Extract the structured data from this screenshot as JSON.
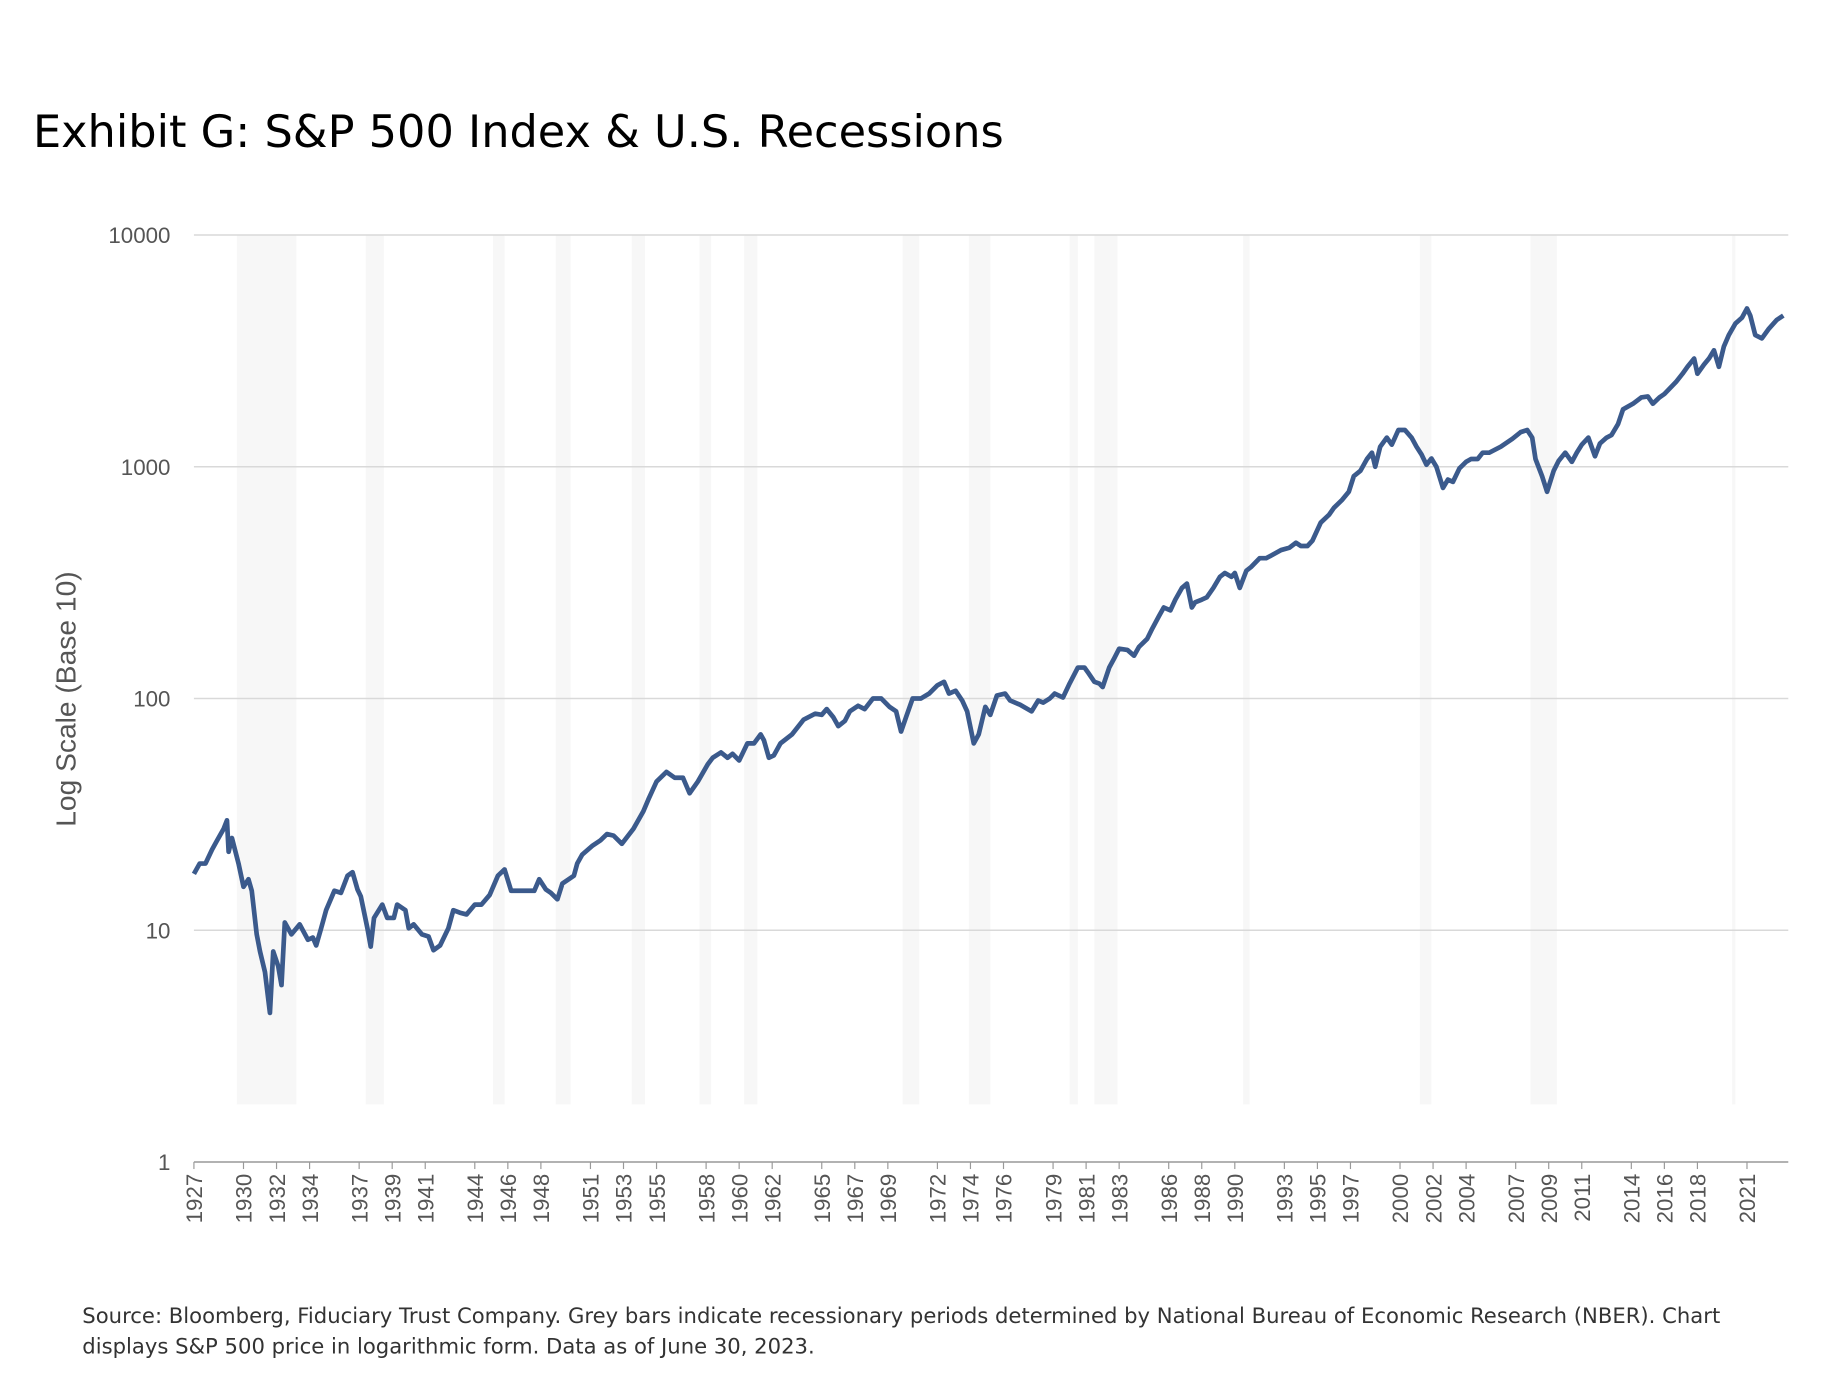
{
  "chart_data": {
    "type": "line",
    "title": "Exhibit G: S&P 500 Index & U.S. Recessions",
    "ylabel": "Log Scale (Base 10)",
    "source": "Source: Bloomberg, Fiduciary Trust Company. Grey bars indicate recessionary periods determined by National Bureau of Economic Research (NBER). Chart displays S&P 500 price in logarithmic form. Data as of June 30, 2023.",
    "log_y": true,
    "grid": true,
    "ylim": [
      1,
      10000
    ],
    "yticks": [
      1,
      10,
      100,
      1000,
      10000
    ],
    "xlim": [
      1927,
      2023.5
    ],
    "xticks": [
      1927,
      1930,
      1932,
      1934,
      1937,
      1939,
      1941,
      1944,
      1946,
      1948,
      1951,
      1953,
      1955,
      1958,
      1960,
      1962,
      1965,
      1967,
      1969,
      1972,
      1974,
      1976,
      1979,
      1981,
      1983,
      1986,
      1988,
      1990,
      1993,
      1995,
      1997,
      2000,
      2002,
      2004,
      2007,
      2009,
      2011,
      2014,
      2016,
      2018,
      2021
    ],
    "recession_periods": [
      [
        1929.6,
        1933.2
      ],
      [
        1937.4,
        1938.5
      ],
      [
        1945.1,
        1945.8
      ],
      [
        1948.9,
        1949.8
      ],
      [
        1953.5,
        1954.3
      ],
      [
        1957.6,
        1958.3
      ],
      [
        1960.3,
        1961.1
      ],
      [
        1969.9,
        1970.9
      ],
      [
        1973.9,
        1975.2
      ],
      [
        1980.0,
        1980.5
      ],
      [
        1981.5,
        1982.9
      ],
      [
        1990.5,
        1990.9
      ],
      [
        2001.2,
        2001.9
      ],
      [
        2007.9,
        2009.5
      ],
      [
        2020.1,
        2020.3
      ]
    ],
    "series": [
      {
        "name": "S&P 500",
        "color": "#3b5a8c",
        "x": [
          1927,
          1927.35,
          1927.7,
          1928.1,
          1928.4,
          1928.8,
          1929.0,
          1929.1,
          1929.3,
          1929.7,
          1930.0,
          1930.3,
          1930.5,
          1930.8,
          1931.0,
          1931.3,
          1931.6,
          1931.8,
          1932.1,
          1932.3,
          1932.5,
          1932.9,
          1933.4,
          1933.9,
          1934.2,
          1934.4,
          1934.7,
          1935.0,
          1935.5,
          1935.9,
          1936.3,
          1936.6,
          1936.9,
          1937.1,
          1937.5,
          1937.7,
          1937.9,
          1938.4,
          1938.7,
          1939.1,
          1939.3,
          1939.8,
          1940.0,
          1940.3,
          1940.8,
          1941.2,
          1941.5,
          1941.9,
          1942.4,
          1942.7,
          1943.1,
          1943.5,
          1944.0,
          1944.4,
          1944.9,
          1945.4,
          1945.8,
          1946.2,
          1947.1,
          1947.6,
          1947.9,
          1948.3,
          1948.6,
          1949.0,
          1949.3,
          1950.0,
          1950.2,
          1950.5,
          1951.1,
          1951.6,
          1952.0,
          1952.4,
          1952.9,
          1953.6,
          1954.2,
          1954.5,
          1955.0,
          1955.6,
          1956.1,
          1956.6,
          1957.0,
          1957.5,
          1958.1,
          1958.4,
          1958.9,
          1959.3,
          1959.6,
          1960.0,
          1960.5,
          1960.9,
          1961.3,
          1961.5,
          1961.8,
          1962.1,
          1962.5,
          1963.2,
          1963.9,
          1964.6,
          1965.0,
          1965.3,
          1965.7,
          1966.0,
          1966.4,
          1966.7,
          1967.2,
          1967.6,
          1968.1,
          1968.6,
          1969.1,
          1969.5,
          1969.8,
          1970.1,
          1970.5,
          1971.0,
          1971.5,
          1972.0,
          1972.4,
          1972.7,
          1973.1,
          1973.5,
          1973.8,
          1974.2,
          1974.5,
          1974.9,
          1975.2,
          1975.6,
          1976.1,
          1976.4,
          1977.0,
          1977.7,
          1978.1,
          1978.4,
          1978.8,
          1979.1,
          1979.6,
          1980.0,
          1980.5,
          1980.9,
          1981.1,
          1981.5,
          1981.8,
          1982.0,
          1982.4,
          1982.7,
          1983.0,
          1983.5,
          1983.9,
          1984.2,
          1984.7,
          1985.0,
          1985.4,
          1985.7,
          1986.1,
          1986.4,
          1986.8,
          1987.1,
          1987.4,
          1987.6,
          1988.0,
          1988.3,
          1988.7,
          1989.1,
          1989.4,
          1989.8,
          1990.0,
          1990.3,
          1990.7,
          1991.0,
          1991.5,
          1991.9,
          1992.5,
          1992.8,
          1993.3,
          1993.7,
          1994.0,
          1994.4,
          1994.7,
          1995.2,
          1995.7,
          1996.0,
          1996.5,
          1996.9,
          1997.2,
          1997.6,
          1998.0,
          1998.3,
          1998.5,
          1998.8,
          1999.2,
          1999.5,
          1999.9,
          2000.3,
          2000.7,
          2001.0,
          2001.3,
          2001.6,
          2001.9,
          2002.2,
          2002.6,
          2002.9,
          2003.2,
          2003.6,
          2004.0,
          2004.3,
          2004.7,
          2005.0,
          2005.4,
          2006.1,
          2006.8,
          2007.3,
          2007.7,
          2008.0,
          2008.2,
          2008.6,
          2008.9,
          2009.3,
          2009.6,
          2010.0,
          2010.4,
          2010.7,
          2011.0,
          2011.4,
          2011.8,
          2012.1,
          2012.5,
          2012.8,
          2013.2,
          2013.5,
          2014.1,
          2014.6,
          2015.0,
          2015.3,
          2015.7,
          2016.0,
          2016.7,
          2017.1,
          2017.4,
          2017.8,
          2018.0,
          2018.4,
          2018.7,
          2019.0,
          2019.3,
          2019.6,
          2019.9,
          2020.3,
          2020.7,
          2021.0,
          2021.2,
          2021.5,
          2021.9,
          2022.3,
          2022.8,
          2023.2
        ],
        "values": [
          17.5,
          19.4,
          19.4,
          22.3,
          24.4,
          27.4,
          29.8,
          21.8,
          25,
          19.4,
          15.4,
          16.6,
          14.8,
          9.6,
          8.1,
          6.6,
          4.4,
          8.1,
          7.0,
          5.8,
          10.8,
          9.6,
          10.6,
          9.1,
          9.3,
          8.6,
          10.2,
          12.2,
          14.8,
          14.5,
          17.2,
          17.8,
          15.0,
          14.0,
          10.2,
          8.5,
          11.3,
          12.9,
          11.3,
          11.3,
          12.9,
          12.2,
          10.2,
          10.6,
          9.6,
          9.4,
          8.2,
          8.6,
          10.2,
          12.2,
          11.9,
          11.7,
          12.9,
          12.9,
          14.2,
          17.2,
          18.3,
          14.8,
          14.8,
          14.8,
          16.6,
          15.0,
          14.5,
          13.6,
          15.9,
          17.2,
          19.4,
          21.2,
          23.1,
          24.4,
          26,
          25.6,
          23.6,
          27.4,
          32.6,
          36.6,
          43.8,
          48.2,
          45.5,
          45.5,
          39,
          43.8,
          52,
          55.5,
          58.5,
          55.5,
          57.7,
          54,
          64,
          64,
          70,
          66,
          55.5,
          56.8,
          64,
          70,
          81,
          86,
          85,
          90,
          83,
          76,
          80,
          88,
          93,
          90,
          100,
          100,
          92,
          88,
          72,
          83,
          100,
          100,
          105,
          114,
          118,
          105,
          108,
          98,
          88,
          64,
          70,
          92,
          85,
          103,
          105,
          98,
          94,
          88,
          98,
          96,
          100,
          105,
          101,
          116,
          136,
          136,
          130,
          118,
          116,
          112,
          136,
          149,
          164,
          162,
          153,
          167,
          181,
          200,
          226,
          247,
          240,
          267,
          300,
          313,
          247,
          260,
          267,
          273,
          300,
          335,
          348,
          335,
          348,
          300,
          356,
          370,
          403,
          403,
          425,
          437,
          447,
          470,
          455,
          455,
          480,
          574,
          620,
          665,
          720,
          780,
          910,
          960,
          1080,
          1150,
          1000,
          1220,
          1335,
          1245,
          1440,
          1440,
          1335,
          1220,
          1130,
          1020,
          1085,
          1000,
          810,
          880,
          860,
          985,
          1050,
          1080,
          1080,
          1150,
          1150,
          1220,
          1320,
          1410,
          1440,
          1335,
          1080,
          910,
          780,
          960,
          1060,
          1150,
          1050,
          1150,
          1245,
          1335,
          1110,
          1260,
          1335,
          1370,
          1530,
          1770,
          1870,
          1990,
          2010,
          1870,
          1990,
          2060,
          2320,
          2520,
          2700,
          2930,
          2520,
          2760,
          2930,
          3180,
          2700,
          3300,
          3700,
          4150,
          4400,
          4820,
          4490,
          3700,
          3580,
          3920,
          4300,
          4490
        ]
      }
    ]
  }
}
